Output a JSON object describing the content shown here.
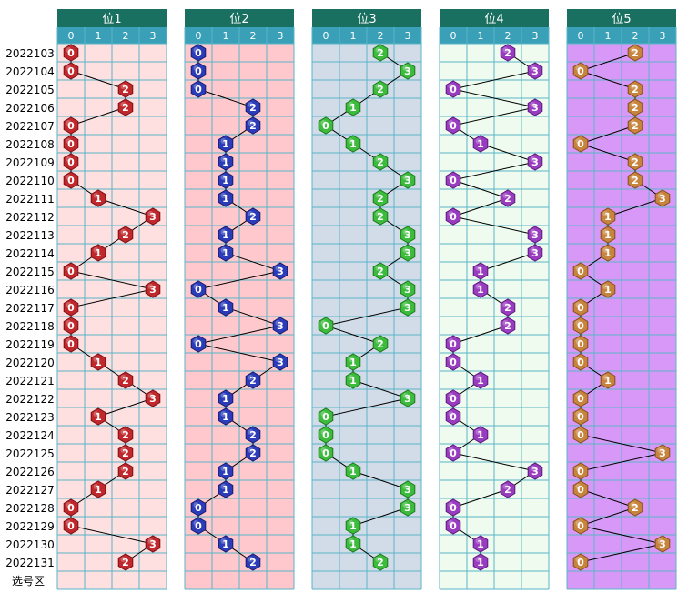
{
  "chart_data": {
    "type": "table",
    "panels": [
      {
        "title": "位1",
        "bg": "#ffe0e0",
        "ball": "#c0282c",
        "ball_dark": "#7a1016"
      },
      {
        "title": "位2",
        "bg": "#ffc8cc",
        "ball": "#2c3cb8",
        "ball_dark": "#141e70"
      },
      {
        "title": "位3",
        "bg": "#d2dce8",
        "ball": "#3cbb3c",
        "ball_dark": "#1c7a1c"
      },
      {
        "title": "位4",
        "bg": "#eefbee",
        "ball": "#9a3cc0",
        "ball_dark": "#5a1a7a"
      },
      {
        "title": "位5",
        "bg": "#d898f8",
        "ball": "#c8843c",
        "ball_dark": "#80501a"
      }
    ],
    "columns": [
      "0",
      "1",
      "2",
      "3"
    ],
    "rows": [
      "2022103",
      "2022104",
      "2022105",
      "2022106",
      "2022107",
      "2022108",
      "2022109",
      "2022110",
      "2022111",
      "2022112",
      "2022113",
      "2022114",
      "2022115",
      "2022116",
      "2022117",
      "2022118",
      "2022119",
      "2022120",
      "2022121",
      "2022122",
      "2022123",
      "2022124",
      "2022125",
      "2022126",
      "2022127",
      "2022128",
      "2022129",
      "2022130",
      "2022131"
    ],
    "values": [
      [
        0,
        0,
        2,
        2,
        2
      ],
      [
        0,
        0,
        3,
        3,
        0
      ],
      [
        2,
        0,
        2,
        0,
        2
      ],
      [
        2,
        2,
        1,
        3,
        2
      ],
      [
        0,
        2,
        0,
        0,
        2
      ],
      [
        0,
        1,
        1,
        1,
        0
      ],
      [
        0,
        1,
        2,
        3,
        2
      ],
      [
        0,
        1,
        3,
        0,
        2
      ],
      [
        1,
        1,
        2,
        2,
        3
      ],
      [
        3,
        2,
        2,
        0,
        1
      ],
      [
        2,
        1,
        3,
        3,
        1
      ],
      [
        1,
        1,
        3,
        3,
        1
      ],
      [
        0,
        3,
        2,
        1,
        0
      ],
      [
        3,
        0,
        3,
        1,
        1
      ],
      [
        0,
        1,
        3,
        2,
        0
      ],
      [
        0,
        3,
        0,
        2,
        0
      ],
      [
        0,
        0,
        2,
        0,
        0
      ],
      [
        1,
        3,
        1,
        0,
        0
      ],
      [
        2,
        2,
        1,
        1,
        1
      ],
      [
        3,
        1,
        3,
        0,
        0
      ],
      [
        1,
        1,
        0,
        0,
        0
      ],
      [
        2,
        2,
        0,
        1,
        0
      ],
      [
        2,
        2,
        0,
        0,
        3
      ],
      [
        2,
        1,
        1,
        3,
        0
      ],
      [
        1,
        1,
        3,
        2,
        0
      ],
      [
        0,
        0,
        3,
        0,
        2
      ],
      [
        0,
        0,
        1,
        0,
        0
      ],
      [
        3,
        1,
        1,
        1,
        3
      ],
      [
        2,
        2,
        2,
        1,
        0
      ]
    ],
    "footer_label": "选号区",
    "grid_color": "#5ab4c8",
    "header_bg": "#1a7060",
    "colnum_bg": "#3aa0b8"
  }
}
